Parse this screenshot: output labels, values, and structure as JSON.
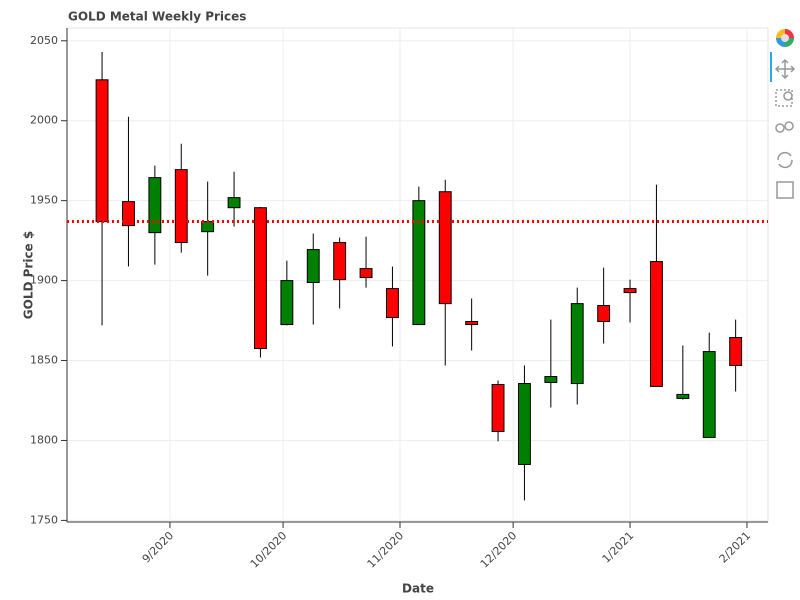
{
  "chart_data": {
    "type": "candlestick",
    "title": "GOLD Metal Weekly Prices",
    "x_label": "Date",
    "y_label": "GOLD Price $",
    "x": [
      1597363200000,
      1597968000000,
      1598572800000,
      1599177600000,
      1599782400000,
      1600387200000,
      1600992000000,
      1601596800000,
      1602201600000,
      1602806400000,
      1603411200000,
      1604016000000,
      1604620800000,
      1605225600000,
      1605830400000,
      1606435200000,
      1607040000000,
      1607644800000,
      1608249600000,
      1608854400000,
      1609459200000,
      1610064000000,
      1610668800000,
      1611273600000,
      1611878400000
    ],
    "open": [
      2025.6,
      1949.4,
      1930,
      1969.4,
      1930.6,
      1945.6,
      1945.6,
      1872.5,
      1898.8,
      1923.8,
      1907.5,
      1895,
      1872.5,
      1955.6,
      1874.4,
      1835,
      1785,
      1836.3,
      1835.6,
      1884.4,
      1895,
      1911.9,
      1826.3,
      1801.9,
      1864.4
    ],
    "high": [
      2043,
      2002.5,
      1971.9,
      1985.6,
      1961.9,
      1968.1,
      1946,
      1912.5,
      1929.4,
      1926.9,
      1927.5,
      1908.8,
      1958.8,
      1963.1,
      1888.8,
      1837.5,
      1846.9,
      1875.6,
      1895.6,
      1908.1,
      1900.6,
      1960,
      1859.4,
      1867.5,
      1875.6
    ],
    "low": [
      1872,
      1908.8,
      1910,
      1917.5,
      1903.1,
      1933.8,
      1851.9,
      1872,
      1872.5,
      1882.5,
      1895.6,
      1858.8,
      1872.5,
      1846.9,
      1856.3,
      1799.4,
      1762.5,
      1820.6,
      1822.5,
      1860.6,
      1873.8,
      1833.8,
      1825.6,
      1801.9,
      1830.6
    ],
    "close": [
      1936.9,
      1934.4,
      1964.4,
      1923.8,
      1936.9,
      1951.9,
      1857.5,
      1900,
      1919.4,
      1900.6,
      1901.9,
      1876.9,
      1950,
      1885.6,
      1872.5,
      1805.6,
      1835.6,
      1840,
      1885.6,
      1874.4,
      1892.5,
      1833.8,
      1828.8,
      1855.6,
      1846.9
    ],
    "up_color": "green",
    "down_color": "red",
    "hline": {
      "value": 1937,
      "color": "red",
      "dash": "dotted"
    },
    "xlim": [
      1596560000000,
      1612620000000
    ],
    "xticks": [
      {
        "value": 1598918400000,
        "label": "9/2020"
      },
      {
        "value": 1601510400000,
        "label": "10/2020"
      },
      {
        "value": 1604188800000,
        "label": "11/2020"
      },
      {
        "value": 1606780800000,
        "label": "12/2020"
      },
      {
        "value": 1609459200000,
        "label": "1/2021"
      },
      {
        "value": 1612137600000,
        "label": "2/2021"
      }
    ],
    "ylim": [
      1749,
      2058
    ],
    "yticks": [
      1750,
      1800,
      1850,
      1900,
      1950,
      2000,
      2050
    ],
    "grid": true
  }
}
